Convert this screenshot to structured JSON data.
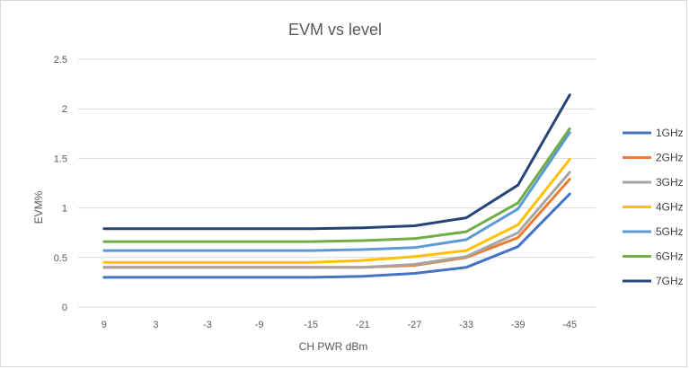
{
  "chart_data": {
    "type": "line",
    "title": "EVM vs level",
    "xlabel": "CH PWR dBm",
    "ylabel": "EVM%",
    "categories": [
      "9",
      "3",
      "-3",
      "-9",
      "-15",
      "-21",
      "-27",
      "-33",
      "-39",
      "-45"
    ],
    "ylim": [
      0,
      2.5
    ],
    "yticks": [
      "0",
      "0.5",
      "1",
      "1.5",
      "2",
      "2.5"
    ],
    "grid": true,
    "legend_position": "right",
    "series": [
      {
        "name": "1GHz",
        "color": "#4472C4",
        "values": [
          0.3,
          0.3,
          0.3,
          0.3,
          0.3,
          0.31,
          0.34,
          0.4,
          0.61,
          1.14
        ]
      },
      {
        "name": "2GHz",
        "color": "#ED7D31",
        "values": [
          0.4,
          0.4,
          0.4,
          0.4,
          0.4,
          0.4,
          0.42,
          0.5,
          0.7,
          1.29
        ]
      },
      {
        "name": "3GHz",
        "color": "#A5A5A5",
        "values": [
          0.4,
          0.4,
          0.4,
          0.4,
          0.4,
          0.4,
          0.43,
          0.51,
          0.75,
          1.36
        ]
      },
      {
        "name": "4GHz",
        "color": "#FFC000",
        "values": [
          0.45,
          0.45,
          0.45,
          0.45,
          0.45,
          0.47,
          0.51,
          0.57,
          0.83,
          1.49
        ]
      },
      {
        "name": "5GHz",
        "color": "#5B9BD5",
        "values": [
          0.57,
          0.57,
          0.57,
          0.57,
          0.57,
          0.58,
          0.6,
          0.68,
          0.99,
          1.76
        ]
      },
      {
        "name": "6GHz",
        "color": "#70AD47",
        "values": [
          0.66,
          0.66,
          0.66,
          0.66,
          0.66,
          0.67,
          0.69,
          0.76,
          1.05,
          1.8
        ]
      },
      {
        "name": "7GHz",
        "color": "#264478",
        "values": [
          0.79,
          0.79,
          0.79,
          0.79,
          0.79,
          0.8,
          0.82,
          0.9,
          1.23,
          2.14
        ]
      }
    ]
  }
}
